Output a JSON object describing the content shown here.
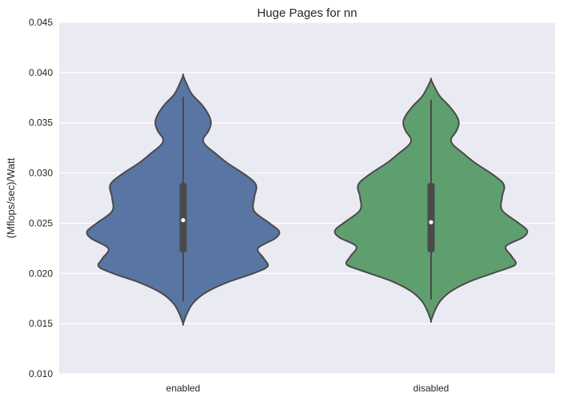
{
  "chart_data": {
    "type": "violin",
    "title": "Huge Pages for nn",
    "xlabel": "",
    "ylabel": "(Mflops/sec)/Watt",
    "ylim": [
      0.01,
      0.045
    ],
    "yticks": [
      "0.010",
      "0.015",
      "0.020",
      "0.025",
      "0.030",
      "0.035",
      "0.040",
      "0.045"
    ],
    "grid": true,
    "categories": [
      "enabled",
      "disabled"
    ],
    "series": [
      {
        "category": "enabled",
        "color": "#5875a4",
        "median": 0.0253,
        "q1": 0.0221,
        "q3": 0.029,
        "whisker_low": 0.0172,
        "whisker_high": 0.0376,
        "min": 0.015,
        "max": 0.0397,
        "density": [
          [
            0.015,
            0.0
          ],
          [
            0.016,
            0.04
          ],
          [
            0.017,
            0.1
          ],
          [
            0.018,
            0.22
          ],
          [
            0.019,
            0.43
          ],
          [
            0.02,
            0.73
          ],
          [
            0.0207,
            0.88
          ],
          [
            0.0215,
            0.84
          ],
          [
            0.0225,
            0.78
          ],
          [
            0.0235,
            0.96
          ],
          [
            0.0242,
            1.0
          ],
          [
            0.025,
            0.9
          ],
          [
            0.0262,
            0.74
          ],
          [
            0.0275,
            0.74
          ],
          [
            0.0288,
            0.76
          ],
          [
            0.0298,
            0.65
          ],
          [
            0.031,
            0.46
          ],
          [
            0.032,
            0.33
          ],
          [
            0.0328,
            0.23
          ],
          [
            0.0334,
            0.21
          ],
          [
            0.0342,
            0.265
          ],
          [
            0.035,
            0.29
          ],
          [
            0.0358,
            0.265
          ],
          [
            0.0368,
            0.195
          ],
          [
            0.0378,
            0.095
          ],
          [
            0.0388,
            0.04
          ],
          [
            0.0397,
            0.0
          ]
        ]
      },
      {
        "category": "disabled",
        "color": "#5f9e6e",
        "median": 0.0251,
        "q1": 0.0221,
        "q3": 0.029,
        "whisker_low": 0.0174,
        "whisker_high": 0.0373,
        "min": 0.0153,
        "max": 0.0393,
        "density": [
          [
            0.0153,
            0.0
          ],
          [
            0.0163,
            0.04
          ],
          [
            0.0173,
            0.1
          ],
          [
            0.0183,
            0.22
          ],
          [
            0.0193,
            0.43
          ],
          [
            0.0203,
            0.73
          ],
          [
            0.0209,
            0.88
          ],
          [
            0.0217,
            0.84
          ],
          [
            0.0227,
            0.78
          ],
          [
            0.0236,
            0.96
          ],
          [
            0.0243,
            1.0
          ],
          [
            0.0251,
            0.9
          ],
          [
            0.0263,
            0.74
          ],
          [
            0.0276,
            0.74
          ],
          [
            0.0288,
            0.76
          ],
          [
            0.0298,
            0.65
          ],
          [
            0.031,
            0.46
          ],
          [
            0.032,
            0.33
          ],
          [
            0.0328,
            0.23
          ],
          [
            0.0334,
            0.21
          ],
          [
            0.0342,
            0.265
          ],
          [
            0.035,
            0.29
          ],
          [
            0.0357,
            0.265
          ],
          [
            0.0366,
            0.195
          ],
          [
            0.0376,
            0.095
          ],
          [
            0.0385,
            0.04
          ],
          [
            0.0393,
            0.0
          ]
        ]
      }
    ]
  }
}
